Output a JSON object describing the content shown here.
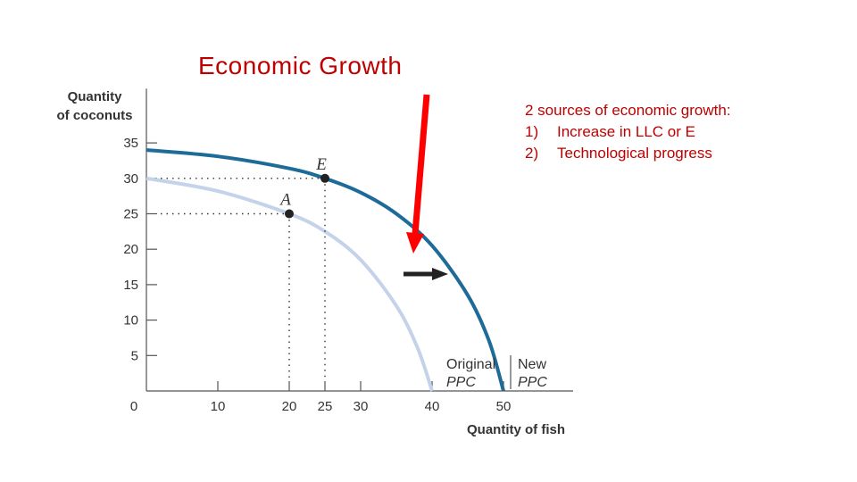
{
  "slide": {
    "title": "Economic Growth",
    "notes_heading": "2 sources of economic growth:",
    "notes_items": [
      {
        "num": "1)",
        "text": "Increase in LLC or E"
      },
      {
        "num": "2)",
        "text": "Technological progress"
      }
    ]
  },
  "chart_data": {
    "type": "line",
    "title": "",
    "ylabel_line1": "Quantity",
    "ylabel_line2": "of coconuts",
    "xlabel": "Quantity of fish",
    "xlim": [
      0,
      59
    ],
    "ylim": [
      0,
      37
    ],
    "x_ticks": [
      10,
      20,
      25,
      30,
      40,
      50
    ],
    "y_ticks": [
      5,
      10,
      15,
      20,
      25,
      30,
      35
    ],
    "origin_label": "0",
    "series": [
      {
        "name": "Original PPC",
        "label_line1": "Original",
        "label_line2": "PPC",
        "color": "#c5d3ea",
        "x": [
          0,
          10,
          20,
          25,
          30,
          35,
          38,
          40
        ],
        "y": [
          30,
          28.2,
          25,
          22.5,
          18.5,
          12,
          6,
          0
        ]
      },
      {
        "name": "New PPC",
        "label_line1": "New",
        "label_line2": "PPC",
        "color": "#1d6b98",
        "x": [
          0,
          10,
          20,
          25,
          30,
          35,
          40,
          45,
          48,
          50
        ],
        "y": [
          34,
          33.1,
          31.4,
          30,
          28,
          25,
          20.5,
          13.5,
          7,
          0
        ]
      }
    ],
    "points": [
      {
        "label": "A",
        "x": 20,
        "y": 25
      },
      {
        "label": "E",
        "x": 25,
        "y": 30
      }
    ],
    "annotations": {
      "shift_arrow_color": "#222222",
      "pointer_arrow_color": "#ff0000"
    }
  }
}
